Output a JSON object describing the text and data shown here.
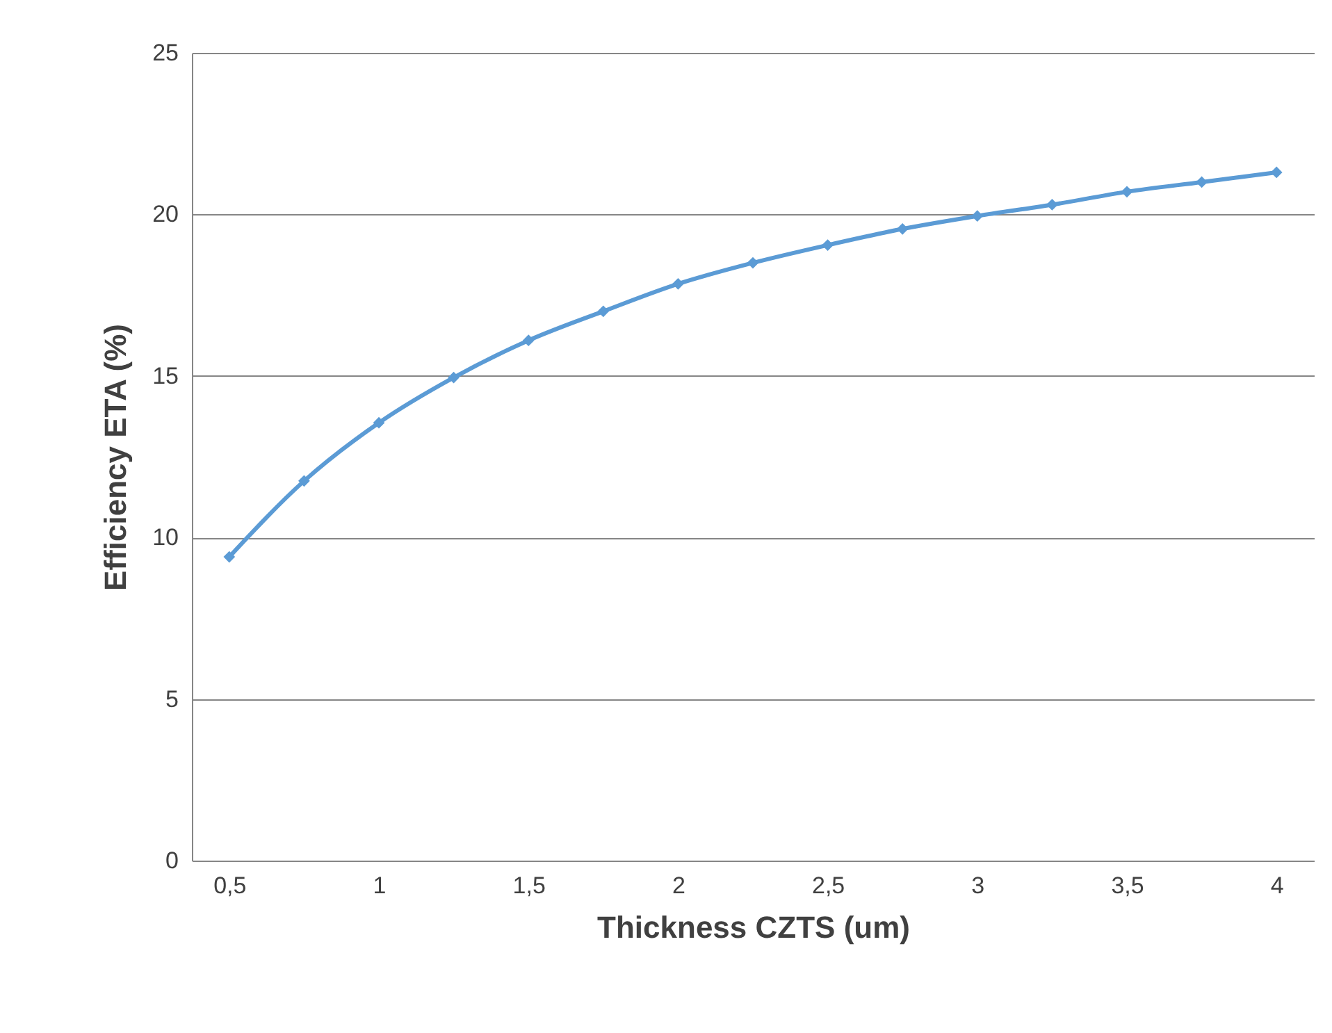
{
  "chart_data": {
    "type": "line",
    "xlabel": "Thickness CZTS (um)",
    "ylabel": "Efficiency ETA (%)",
    "x": [
      0.5,
      0.75,
      1,
      1.25,
      1.5,
      1.75,
      2,
      2.25,
      2.5,
      2.75,
      3,
      3.25,
      3.5,
      3.75,
      4
    ],
    "series": [
      {
        "color": "#5b9bd5",
        "values": [
          9.4,
          11.75,
          13.55,
          14.95,
          16.1,
          17.0,
          17.85,
          18.5,
          19.05,
          19.55,
          19.95,
          20.3,
          20.7,
          21.0,
          21.3
        ]
      }
    ],
    "xlim": [
      0.375,
      4.125
    ],
    "xticks": [
      {
        "value": 0.5,
        "label": "0,5"
      },
      1,
      {
        "value": 1.5,
        "label": "1,5"
      },
      2,
      {
        "value": 2.5,
        "label": "2,5"
      },
      3,
      {
        "value": 3.5,
        "label": "3,5"
      },
      4
    ],
    "ylim": [
      0,
      25
    ],
    "yticks": [
      0,
      5,
      10,
      15,
      20,
      25
    ],
    "grid": "y",
    "marker": "diamond",
    "line_style": "solid"
  }
}
